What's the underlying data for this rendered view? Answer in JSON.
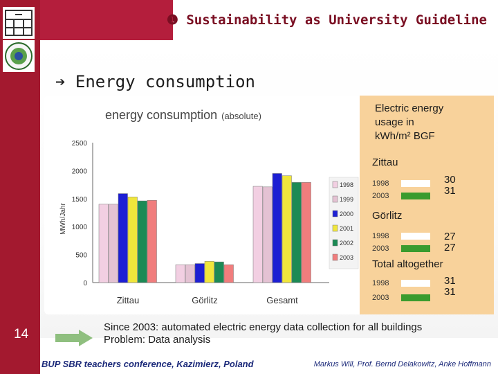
{
  "header": {
    "title": "❶ Sustainability as University Guideline",
    "subtitle": "➔ Energy consumption"
  },
  "slide": {
    "number": "14"
  },
  "chart_data": {
    "type": "bar",
    "title": "energy consumption",
    "title_suffix": "(absolute)",
    "xlabel": "",
    "ylabel": "MWh/Jahr",
    "ylim": [
      0,
      2500
    ],
    "yticks": [
      0,
      500,
      1000,
      1500,
      2000,
      2500
    ],
    "categories": [
      "Zittau",
      "Görlitz",
      "Gesamt"
    ],
    "grid": false,
    "legend": "right",
    "series": [
      {
        "name": "1998",
        "color": "#f2cfe2",
        "values": [
          1400,
          320,
          1720
        ]
      },
      {
        "name": "1999",
        "color": "#e4c2d3",
        "values": [
          1400,
          320,
          1710
        ]
      },
      {
        "name": "2000",
        "color": "#1d1fd3",
        "values": [
          1590,
          340,
          1950
        ]
      },
      {
        "name": "2001",
        "color": "#f0e63c",
        "values": [
          1530,
          380,
          1910
        ]
      },
      {
        "name": "2002",
        "color": "#1c8a55",
        "values": [
          1460,
          370,
          1790
        ]
      },
      {
        "name": "2003",
        "color": "#f07d7d",
        "values": [
          1470,
          320,
          1790
        ]
      }
    ]
  },
  "info": {
    "title_lines": [
      "Electric energy",
      "usage in",
      "kWh/m² BGF"
    ],
    "groups": [
      {
        "name": "Zittau",
        "years": [
          "1998",
          "2003"
        ],
        "values": [
          "30",
          "31"
        ]
      },
      {
        "name": "Görlitz",
        "years": [
          "1998",
          "2003"
        ],
        "values": [
          "27",
          "27"
        ]
      },
      {
        "name": "Total altogether",
        "years": [
          "1998",
          "2003"
        ],
        "values": [
          "31",
          "31"
        ]
      }
    ],
    "bar_colors": [
      "#ffffff",
      "#3a9b2e"
    ]
  },
  "notes": [
    "Since 2003: automated electric energy data collection for all buildings",
    "Problem: Data analysis"
  ],
  "footer": {
    "left": "BUP SBR teachers conference, Kazimierz, Poland",
    "right": "Markus Will, Prof. Bernd Delakowitz, Anke Hoffmann"
  }
}
